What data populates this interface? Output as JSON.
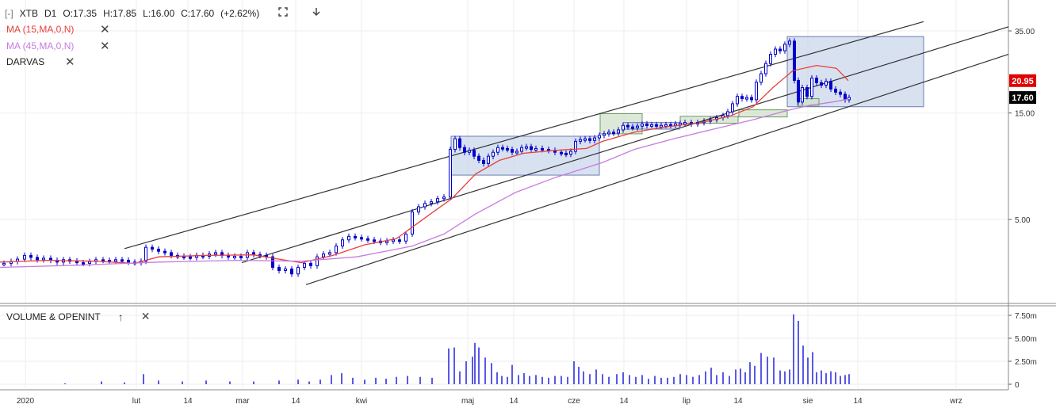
{
  "header": {
    "expand_glyph": "[-]",
    "symbol": "XTB",
    "interval": "D1",
    "open": "O:17.35",
    "high": "H:17.85",
    "low": "L:16.00",
    "close": "C:17.60",
    "change": "(+2.62%)",
    "fullscreen_icon": "fullscreen-icon",
    "download_icon": "arrow-down-icon"
  },
  "indicators": [
    {
      "label": "MA (15,MA,0,N)",
      "color": "#e8403a"
    },
    {
      "label": "MA (45,MA,0,N)",
      "color": "#c77be0"
    },
    {
      "label": "DARVAS",
      "color": "#222222"
    }
  ],
  "close_glyph": "✕",
  "sub_panel": {
    "label": "VOLUME & OPENINT",
    "up_glyph": "↑",
    "close_glyph": "✕"
  },
  "price_badges": [
    {
      "label": "20.95",
      "color": "#e00000"
    },
    {
      "label": "17.60",
      "color": "#000000"
    }
  ],
  "chart_data": {
    "type": "candlestick",
    "y_scale": "log",
    "y_ticks": [
      "35.00",
      "15.00",
      "5.00"
    ],
    "volume_ticks": [
      "7.50m",
      "5.00m",
      "2.50m",
      "0"
    ],
    "x_ticks": [
      "2020",
      "lut",
      "14",
      "mar",
      "14",
      "kwi",
      "maj",
      "14",
      "cze",
      "14",
      "lip",
      "14",
      "sie",
      "14",
      "wrz"
    ],
    "last_close": 17.6,
    "ma15_last": 20.95,
    "candle_color": "#0000cc",
    "volume_color": "#2222dd",
    "darvas_box_blue": "#c8d4ea",
    "darvas_box_green": "#cfe0c8",
    "ma15_color": "#e8403a",
    "ma45_color": "#c77be0"
  }
}
